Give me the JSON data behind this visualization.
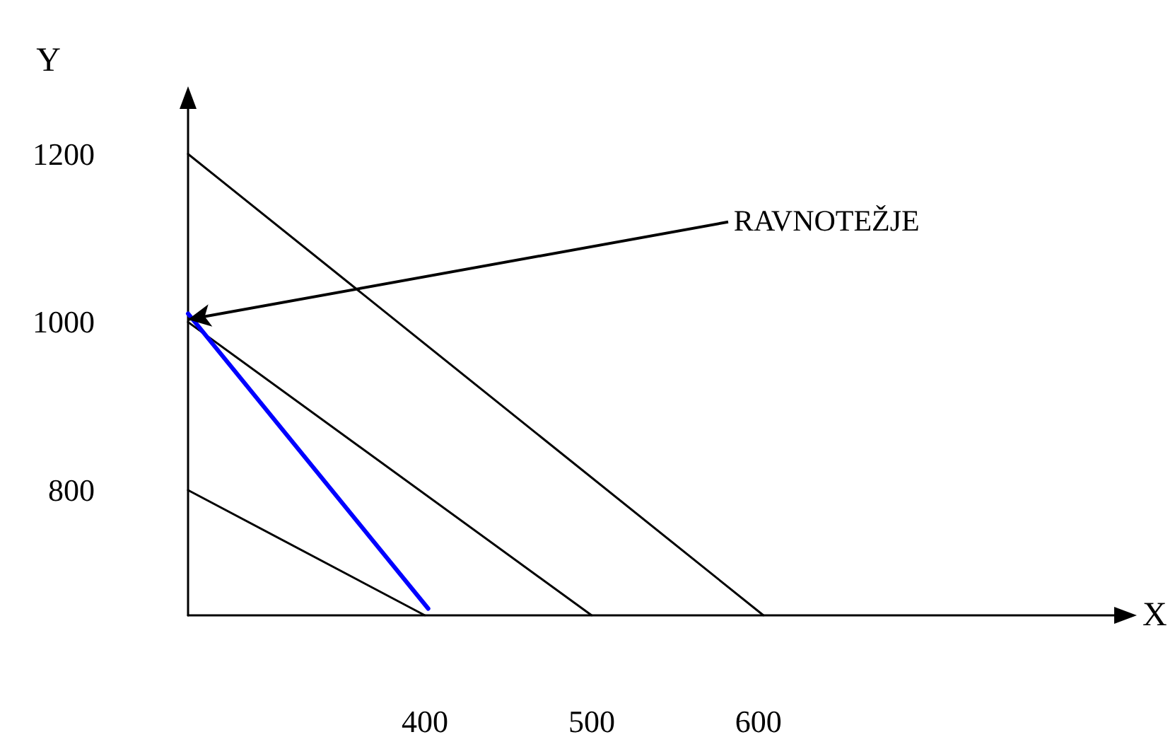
{
  "chart_data": {
    "type": "line",
    "xlabel": "X",
    "ylabel": "Y",
    "xlim": [
      258,
      815
    ],
    "ylim": [
      651,
      1257
    ],
    "xticks": [
      400,
      500,
      600
    ],
    "yticks": [
      800,
      1000,
      1200
    ],
    "grid": false,
    "marker": "none",
    "line_style": "solid",
    "series": [
      {
        "color": "#000000",
        "x": [
          258,
          603
        ],
        "values": [
          1200,
          651
        ]
      },
      {
        "color": "#000000",
        "x": [
          258,
          500
        ],
        "values": [
          1000,
          651
        ]
      },
      {
        "color": "#000000",
        "x": [
          258,
          400
        ],
        "values": [
          800,
          651
        ]
      },
      {
        "color": "#0000ff",
        "x": [
          258,
          402
        ],
        "values": [
          1010,
          659
        ]
      }
    ],
    "annotations": [
      {
        "text": "RAVNOTEŽJE",
        "x": 258,
        "y": 1003
      }
    ]
  }
}
